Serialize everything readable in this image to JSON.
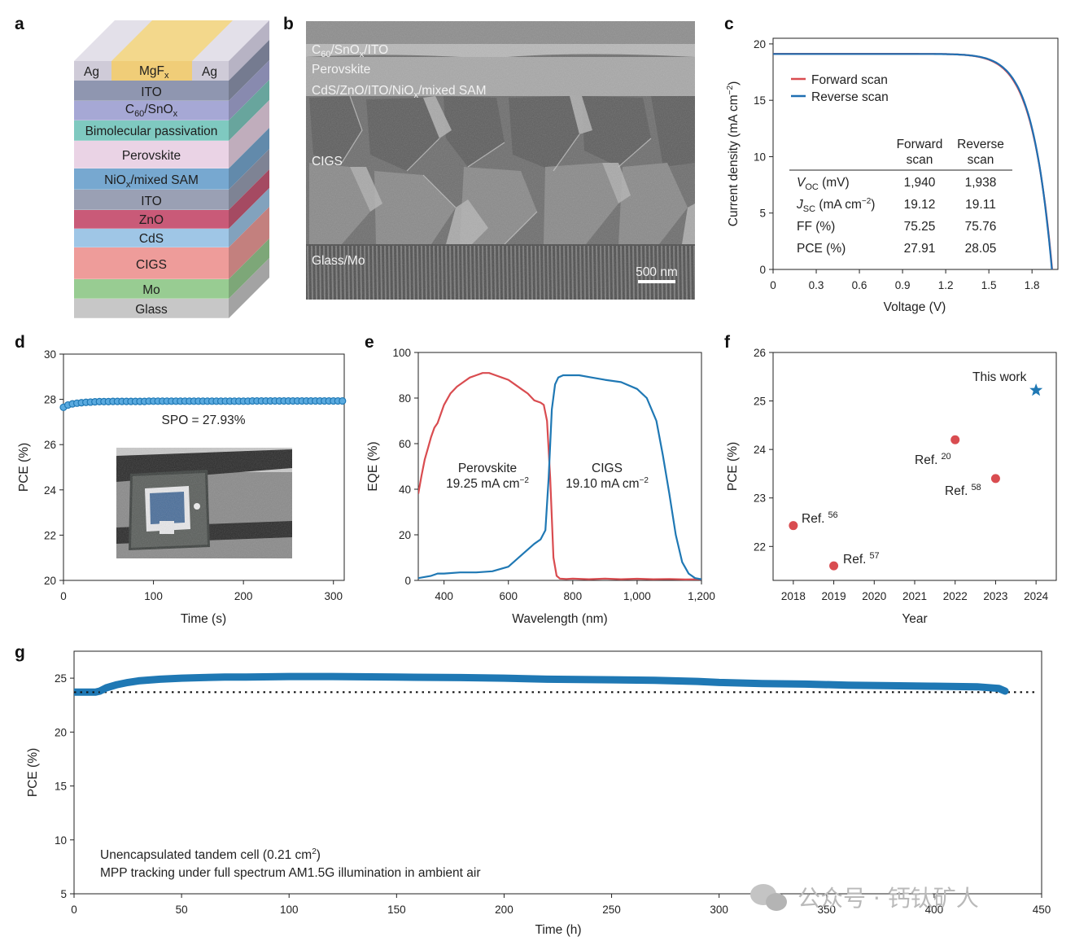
{
  "panel_labels": {
    "a": "a",
    "b": "b",
    "c": "c",
    "d": "d",
    "e": "e",
    "f": "f",
    "g": "g"
  },
  "stack": {
    "top_ag_left": "Ag",
    "top_mgf": "MgF",
    "top_mgf_sub": "x",
    "top_ag_right": "Ag",
    "layers": [
      {
        "label": "ITO",
        "color": "#8f96b0"
      },
      {
        "label": "C60/SnOx",
        "color": "#a6a8d5"
      },
      {
        "label": "Bimolecular passivation",
        "color": "#7fc9c0"
      },
      {
        "label": "Perovskite",
        "color": "#ead3e5"
      },
      {
        "label": "NiOx/mixed SAM",
        "color": "#77a8d0"
      },
      {
        "label": "ITO",
        "color": "#9aa0b4"
      },
      {
        "label": "ZnO",
        "color": "#c95a78"
      },
      {
        "label": "CdS",
        "color": "#9fc6e6"
      },
      {
        "label": "CIGS",
        "color": "#ee9c9a"
      },
      {
        "label": "Mo",
        "color": "#98cc92"
      },
      {
        "label": "Glass",
        "color": "#c7c7c7"
      }
    ],
    "c60_text": "C",
    "c60_sub": "60",
    "snox_text": "/SnO",
    "snox_sub": "x",
    "niox_text": "NiO",
    "niox_sub": "x",
    "niox_rest": "/mixed SAM"
  },
  "sem": {
    "label_top_a": "C",
    "label_top_a_sub": "60",
    "label_top_b": "/SnO",
    "label_top_b_sub": "x",
    "label_top_c": "/ITO",
    "label_perovskite": "Perovskite",
    "label_bottom_cell_a": "CdS/ZnO/ITO/NiO",
    "label_bottom_cell_sub": "x",
    "label_bottom_cell_b": "/mixed SAM",
    "label_cigs": "CIGS",
    "label_glass": "Glass/Mo",
    "scale_bar": "500 nm"
  },
  "chart_data": [
    {
      "panel": "c",
      "type": "line",
      "xlabel": "Voltage (V)",
      "ylabel": "Current density (mA cm",
      "ylabel_sup": "−2",
      "xlim": [
        0,
        1.98
      ],
      "ylim": [
        0,
        20.5
      ],
      "xticks": [
        "0",
        "0.3",
        "0.6",
        "0.9",
        "1.2",
        "1.5",
        "1.8"
      ],
      "yticks": [
        "0",
        "5",
        "10",
        "15",
        "20"
      ],
      "legend_position": "top-left",
      "series": [
        {
          "name": "Forward scan",
          "color": "#d94c50",
          "jsc": 19.12,
          "voc": 1.94
        },
        {
          "name": "Reverse scan",
          "color": "#1f6fb2",
          "jsc": 19.11,
          "voc": 1.938
        }
      ],
      "table": {
        "col_forward_a": "Forward",
        "col_forward_b": "scan",
        "col_reverse_a": "Reverse",
        "col_reverse_b": "scan",
        "rows": [
          {
            "p": "V",
            "sub": "OC",
            "unit": " (mV)",
            "sup": "",
            "unit_end": "",
            "forward": "1,940",
            "reverse": "1,938"
          },
          {
            "p": "J",
            "sub": "SC",
            "unit": " (mA cm",
            "sup": "−2",
            "unit_end": ")",
            "forward": "19.12",
            "reverse": "19.11"
          },
          {
            "p": "FF (%)",
            "sub": "",
            "unit": "",
            "sup": "",
            "unit_end": "",
            "forward": "75.25",
            "reverse": "75.76"
          },
          {
            "p": "PCE (%)",
            "sub": "",
            "unit": "",
            "sup": "",
            "unit_end": "",
            "forward": "27.91",
            "reverse": "28.05"
          }
        ]
      }
    },
    {
      "panel": "d",
      "type": "scatter",
      "xlabel": "Time (s)",
      "ylabel": "PCE (%)",
      "xlim": [
        0,
        312
      ],
      "ylim": [
        20,
        30
      ],
      "xticks": [
        "0",
        "100",
        "200",
        "300"
      ],
      "yticks": [
        "20",
        "22",
        "24",
        "26",
        "28",
        "30"
      ],
      "annotation": "SPO = 27.93%",
      "color": "#1f78b4",
      "points": [
        [
          0,
          27.65
        ],
        [
          5,
          27.75
        ],
        [
          10,
          27.8
        ],
        [
          15,
          27.83
        ],
        [
          20,
          27.85
        ],
        [
          25,
          27.87
        ],
        [
          30,
          27.88
        ],
        [
          35,
          27.89
        ],
        [
          40,
          27.9
        ],
        [
          45,
          27.9
        ],
        [
          50,
          27.9
        ],
        [
          55,
          27.91
        ],
        [
          60,
          27.91
        ],
        [
          65,
          27.91
        ],
        [
          70,
          27.91
        ],
        [
          75,
          27.91
        ],
        [
          80,
          27.91
        ],
        [
          85,
          27.91
        ],
        [
          90,
          27.91
        ],
        [
          95,
          27.92
        ],
        [
          100,
          27.92
        ],
        [
          105,
          27.92
        ],
        [
          110,
          27.92
        ],
        [
          115,
          27.92
        ],
        [
          120,
          27.92
        ],
        [
          125,
          27.92
        ],
        [
          130,
          27.92
        ],
        [
          135,
          27.92
        ],
        [
          140,
          27.92
        ],
        [
          145,
          27.92
        ],
        [
          150,
          27.92
        ],
        [
          155,
          27.92
        ],
        [
          160,
          27.92
        ],
        [
          165,
          27.92
        ],
        [
          170,
          27.92
        ],
        [
          175,
          27.92
        ],
        [
          180,
          27.92
        ],
        [
          185,
          27.92
        ],
        [
          190,
          27.92
        ],
        [
          195,
          27.92
        ],
        [
          200,
          27.92
        ],
        [
          205,
          27.92
        ],
        [
          210,
          27.93
        ],
        [
          215,
          27.93
        ],
        [
          220,
          27.93
        ],
        [
          225,
          27.93
        ],
        [
          230,
          27.93
        ],
        [
          235,
          27.93
        ],
        [
          240,
          27.93
        ],
        [
          245,
          27.93
        ],
        [
          250,
          27.93
        ],
        [
          255,
          27.93
        ],
        [
          260,
          27.93
        ],
        [
          265,
          27.93
        ],
        [
          270,
          27.93
        ],
        [
          275,
          27.93
        ],
        [
          280,
          27.93
        ],
        [
          285,
          27.93
        ],
        [
          290,
          27.93
        ],
        [
          295,
          27.93
        ],
        [
          300,
          27.93
        ],
        [
          305,
          27.93
        ],
        [
          310,
          27.93
        ]
      ]
    },
    {
      "panel": "e",
      "type": "line",
      "xlabel": "Wavelength (nm)",
      "ylabel": "EQE (%)",
      "xlim": [
        320,
        1200
      ],
      "ylim": [
        0,
        100
      ],
      "xticks": [
        "400",
        "600",
        "800",
        "1,000",
        "1,200"
      ],
      "yticks": [
        "0",
        "20",
        "40",
        "60",
        "80",
        "100"
      ],
      "series": [
        {
          "name": "Perovskite",
          "sub_a": "19.25 mA cm",
          "sub_sup": "−2",
          "color": "#d94c50",
          "x": [
            320,
            330,
            340,
            350,
            360,
            370,
            380,
            400,
            420,
            440,
            460,
            480,
            500,
            520,
            540,
            560,
            580,
            600,
            620,
            640,
            660,
            680,
            700,
            710,
            720,
            730,
            740,
            750,
            760,
            780,
            800,
            850,
            900,
            950,
            1000,
            1050,
            1100,
            1150,
            1200
          ],
          "y": [
            38,
            46,
            53,
            58,
            63,
            67,
            69,
            77,
            82,
            85,
            87,
            89,
            90,
            91,
            91,
            90,
            89,
            88,
            86,
            84,
            82,
            79,
            78,
            77,
            70,
            45,
            10,
            2,
            0.8,
            0.6,
            0.8,
            0.5,
            0.8,
            0.5,
            0.7,
            0.5,
            0.6,
            0.4,
            0.5
          ]
        },
        {
          "name": "CIGS",
          "sub_a": "19.10 mA cm",
          "sub_sup": "−2",
          "color": "#1f78b4",
          "x": [
            320,
            340,
            360,
            380,
            400,
            450,
            500,
            550,
            600,
            640,
            680,
            700,
            715,
            725,
            735,
            745,
            755,
            770,
            790,
            820,
            860,
            900,
            950,
            1000,
            1030,
            1060,
            1080,
            1100,
            1120,
            1140,
            1160,
            1180,
            1200
          ],
          "y": [
            1,
            1.5,
            2,
            3,
            3,
            3.5,
            3.5,
            4,
            6,
            11,
            16,
            18,
            22,
            45,
            75,
            86,
            89,
            90,
            90,
            90,
            89,
            88,
            87,
            84,
            80,
            70,
            55,
            38,
            20,
            8,
            3,
            1,
            0.5
          ]
        }
      ]
    },
    {
      "panel": "f",
      "type": "scatter",
      "xlabel": "Year",
      "ylabel": "PCE (%)",
      "xlim": [
        2017.5,
        2024.5
      ],
      "ylim": [
        21.3,
        26
      ],
      "xticks": [
        "2018",
        "2019",
        "2020",
        "2021",
        "2022",
        "2023",
        "2024"
      ],
      "yticks": [
        "22",
        "23",
        "24",
        "25",
        "26"
      ],
      "points": [
        {
          "x": 2018,
          "y": 22.43,
          "label": "Ref.",
          "ref": "56",
          "color": "#d94c50"
        },
        {
          "x": 2019,
          "y": 21.6,
          "label": "Ref.",
          "ref": "57",
          "color": "#d94c50"
        },
        {
          "x": 2022,
          "y": 24.2,
          "label": "Ref.",
          "ref": "20",
          "color": "#d94c50"
        },
        {
          "x": 2023,
          "y": 23.4,
          "label": "Ref.",
          "ref": "58",
          "color": "#d94c50"
        },
        {
          "x": 2024,
          "y": 25.22,
          "label": "This work",
          "ref": "",
          "color": "#1f78b4"
        }
      ]
    },
    {
      "panel": "g",
      "type": "line",
      "xlabel": "Time (h)",
      "ylabel": "PCE (%)",
      "xlim": [
        0,
        450
      ],
      "ylim": [
        5,
        27.5
      ],
      "xticks": [
        "0",
        "50",
        "100",
        "150",
        "200",
        "250",
        "300",
        "350",
        "400",
        "450"
      ],
      "yticks": [
        "5",
        "10",
        "15",
        "20",
        "25"
      ],
      "reference_line": 23.7,
      "color": "#1f78b4",
      "x": [
        0,
        5,
        10,
        12,
        15,
        20,
        25,
        30,
        40,
        50,
        60,
        70,
        80,
        100,
        120,
        150,
        180,
        200,
        220,
        250,
        270,
        290,
        300,
        320,
        340,
        360,
        380,
        400,
        420,
        430,
        433
      ],
      "y": [
        23.7,
        23.7,
        23.7,
        23.8,
        24.1,
        24.4,
        24.6,
        24.75,
        24.9,
        25.0,
        25.05,
        25.1,
        25.1,
        25.15,
        25.15,
        25.1,
        25.05,
        25.0,
        24.9,
        24.85,
        24.8,
        24.7,
        24.6,
        24.5,
        24.45,
        24.35,
        24.3,
        24.25,
        24.2,
        24.05,
        23.8
      ],
      "note_a": "Unencapsulated tandem cell (0.21 cm",
      "note_a_sup": "2",
      "note_a_end": ")",
      "note_b": "MPP tracking under full spectrum AM1.5G illumination in ambient air"
    }
  ],
  "watermark": "公众号 · 钙钛矿人"
}
